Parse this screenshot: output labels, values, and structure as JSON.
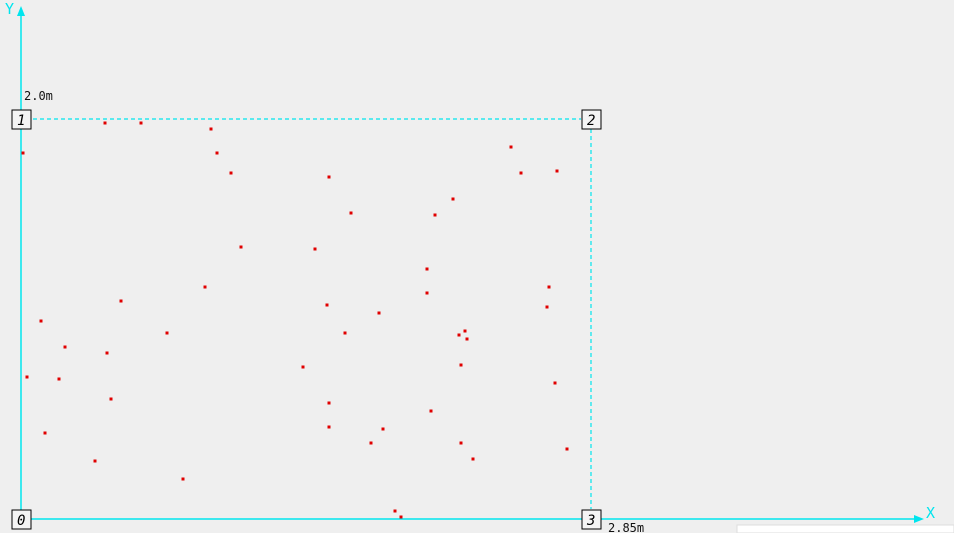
{
  "axes": {
    "x_label": "X",
    "y_label": "Y",
    "width_label": "2.85m",
    "height_label": "2.0m",
    "color": "#00e5ee"
  },
  "corners": [
    "0",
    "1",
    "2",
    "3"
  ],
  "chart_data": {
    "type": "scatter",
    "xlim": [
      0,
      2.85
    ],
    "ylim": [
      0,
      2.0
    ],
    "point_color": "#e00000",
    "points": [
      [
        0.42,
        1.98
      ],
      [
        0.6,
        1.98
      ],
      [
        0.95,
        1.95
      ],
      [
        0.98,
        1.83
      ],
      [
        1.05,
        1.73
      ],
      [
        0.01,
        1.83
      ],
      [
        1.54,
        1.71
      ],
      [
        1.65,
        1.53
      ],
      [
        2.45,
        1.86
      ],
      [
        2.5,
        1.73
      ],
      [
        2.68,
        1.74
      ],
      [
        2.16,
        1.6
      ],
      [
        2.07,
        1.52
      ],
      [
        1.1,
        1.36
      ],
      [
        1.47,
        1.35
      ],
      [
        2.03,
        1.25
      ],
      [
        0.92,
        1.16
      ],
      [
        2.64,
        1.16
      ],
      [
        2.03,
        1.13
      ],
      [
        0.5,
        1.09
      ],
      [
        1.53,
        1.07
      ],
      [
        2.63,
        1.06
      ],
      [
        0.1,
        0.99
      ],
      [
        1.79,
        1.03
      ],
      [
        0.73,
        0.93
      ],
      [
        1.62,
        0.93
      ],
      [
        2.19,
        0.92
      ],
      [
        2.22,
        0.94
      ],
      [
        2.23,
        0.9
      ],
      [
        0.22,
        0.86
      ],
      [
        0.43,
        0.83
      ],
      [
        2.2,
        0.77
      ],
      [
        1.41,
        0.76
      ],
      [
        0.03,
        0.71
      ],
      [
        0.19,
        0.7
      ],
      [
        2.67,
        0.68
      ],
      [
        0.45,
        0.6
      ],
      [
        1.54,
        0.58
      ],
      [
        2.05,
        0.54
      ],
      [
        1.54,
        0.46
      ],
      [
        1.81,
        0.45
      ],
      [
        0.12,
        0.43
      ],
      [
        1.75,
        0.38
      ],
      [
        2.2,
        0.38
      ],
      [
        2.73,
        0.35
      ],
      [
        0.37,
        0.29
      ],
      [
        2.26,
        0.3
      ],
      [
        0.81,
        0.2
      ],
      [
        1.87,
        0.04
      ],
      [
        1.9,
        0.01
      ]
    ]
  }
}
